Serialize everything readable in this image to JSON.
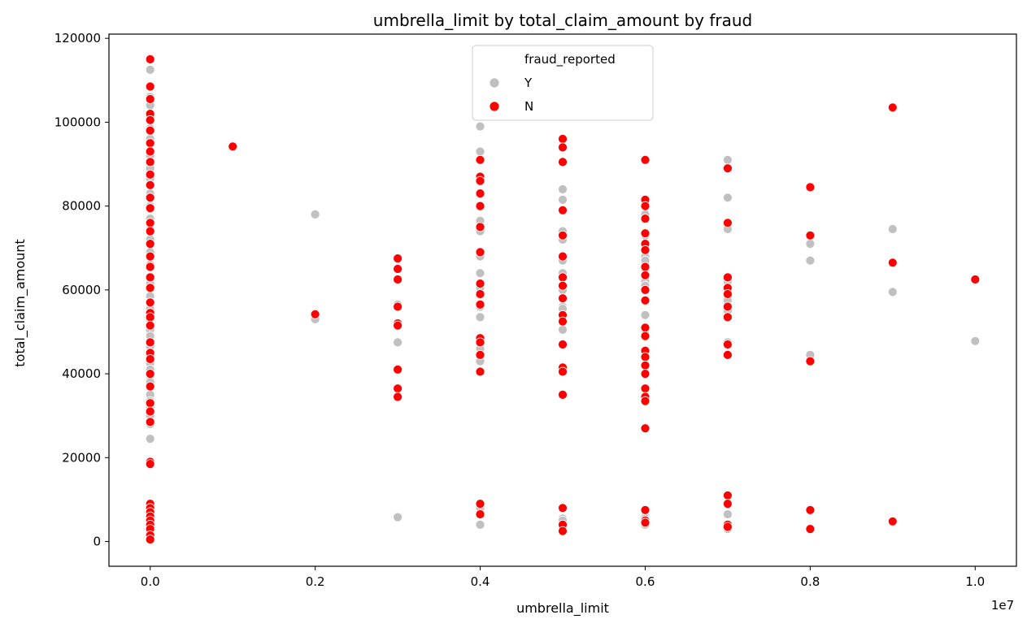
{
  "chart_data": {
    "type": "scatter",
    "title": "umbrella_limit by total_claim_amount by fraud",
    "xlabel": "umbrella_limit",
    "ylabel": "total_claim_amount",
    "x_offset_label": "1e7",
    "xlim": [
      -0.05,
      1.05
    ],
    "ylim": [
      -5900,
      121000
    ],
    "x_ticks": [
      0.0,
      0.2,
      0.4,
      0.6,
      0.8,
      1.0
    ],
    "x_tick_labels": [
      "0.0",
      "0.2",
      "0.4",
      "0.6",
      "0.8",
      "1.0"
    ],
    "y_ticks": [
      0,
      20000,
      40000,
      60000,
      80000,
      100000,
      120000
    ],
    "y_tick_labels": [
      "0",
      "20000",
      "40000",
      "60000",
      "80000",
      "100000",
      "120000"
    ],
    "grid": false,
    "legend": {
      "title": "fraud_reported",
      "placement": "upper-center",
      "entries": [
        {
          "label": "Y",
          "color": "#c0c0c0"
        },
        {
          "label": "N",
          "color": "#ff0000"
        }
      ]
    },
    "series": [
      {
        "name": "Y",
        "color": "#c0c0c0",
        "points": [
          [
            0.0,
            112500
          ],
          [
            0.0,
            106000
          ],
          [
            0.0,
            104000
          ],
          [
            0.0,
            101000
          ],
          [
            0.0,
            98500
          ],
          [
            0.0,
            96000
          ],
          [
            0.0,
            92000
          ],
          [
            0.0,
            89000
          ],
          [
            0.0,
            86500
          ],
          [
            0.0,
            83000
          ],
          [
            0.0,
            80000
          ],
          [
            0.0,
            77000
          ],
          [
            0.0,
            74500
          ],
          [
            0.0,
            72000
          ],
          [
            0.0,
            69000
          ],
          [
            0.0,
            66000
          ],
          [
            0.0,
            63000
          ],
          [
            0.0,
            61500
          ],
          [
            0.0,
            58500
          ],
          [
            0.0,
            55500
          ],
          [
            0.0,
            53000
          ],
          [
            0.0,
            50500
          ],
          [
            0.0,
            49000
          ],
          [
            0.0,
            46500
          ],
          [
            0.0,
            44000
          ],
          [
            0.0,
            42500
          ],
          [
            0.0,
            41000
          ],
          [
            0.0,
            39500
          ],
          [
            0.0,
            38000
          ],
          [
            0.0,
            35000
          ],
          [
            0.0,
            33500
          ],
          [
            0.0,
            32000
          ],
          [
            0.0,
            30000
          ],
          [
            0.0,
            28000
          ],
          [
            0.0,
            24500
          ],
          [
            0.0,
            9000
          ],
          [
            0.0,
            8000
          ],
          [
            0.0,
            7000
          ],
          [
            0.0,
            6000
          ],
          [
            0.0,
            5500
          ],
          [
            0.0,
            4500
          ],
          [
            0.0,
            3000
          ],
          [
            0.0,
            2000
          ],
          [
            0.0,
            1000
          ],
          [
            0.0,
            500
          ],
          [
            0.2,
            78000
          ],
          [
            0.2,
            53000
          ],
          [
            0.3,
            56500
          ],
          [
            0.3,
            52000
          ],
          [
            0.3,
            47500
          ],
          [
            0.3,
            5800
          ],
          [
            0.4,
            99000
          ],
          [
            0.4,
            93000
          ],
          [
            0.4,
            76500
          ],
          [
            0.4,
            74000
          ],
          [
            0.4,
            68000
          ],
          [
            0.4,
            64000
          ],
          [
            0.4,
            60500
          ],
          [
            0.4,
            56000
          ],
          [
            0.4,
            53500
          ],
          [
            0.4,
            46000
          ],
          [
            0.4,
            43000
          ],
          [
            0.4,
            8000
          ],
          [
            0.4,
            4000
          ],
          [
            0.5,
            84000
          ],
          [
            0.5,
            81500
          ],
          [
            0.5,
            74000
          ],
          [
            0.5,
            72000
          ],
          [
            0.5,
            67000
          ],
          [
            0.5,
            64000
          ],
          [
            0.5,
            60000
          ],
          [
            0.5,
            56000
          ],
          [
            0.5,
            55500
          ],
          [
            0.5,
            50500
          ],
          [
            0.5,
            5500
          ],
          [
            0.5,
            5000
          ],
          [
            0.5,
            4000
          ],
          [
            0.5,
            3500
          ],
          [
            0.6,
            78000
          ],
          [
            0.6,
            73000
          ],
          [
            0.6,
            68000
          ],
          [
            0.6,
            67000
          ],
          [
            0.6,
            65000
          ],
          [
            0.6,
            62000
          ],
          [
            0.6,
            61000
          ],
          [
            0.6,
            54000
          ],
          [
            0.6,
            49500
          ],
          [
            0.6,
            7000
          ],
          [
            0.6,
            6500
          ],
          [
            0.6,
            6000
          ],
          [
            0.6,
            5500
          ],
          [
            0.6,
            4500
          ],
          [
            0.6,
            4000
          ],
          [
            0.7,
            91000
          ],
          [
            0.7,
            82000
          ],
          [
            0.7,
            74500
          ],
          [
            0.7,
            62000
          ],
          [
            0.7,
            58000
          ],
          [
            0.7,
            57500
          ],
          [
            0.7,
            55000
          ],
          [
            0.7,
            47500
          ],
          [
            0.7,
            6500
          ],
          [
            0.7,
            4000
          ],
          [
            0.7,
            3000
          ],
          [
            0.8,
            71000
          ],
          [
            0.8,
            67000
          ],
          [
            0.8,
            44500
          ],
          [
            0.9,
            74500
          ],
          [
            0.9,
            59500
          ],
          [
            1.0,
            47800
          ]
        ]
      },
      {
        "name": "N",
        "color": "#ff0000",
        "points": [
          [
            0.0,
            115000
          ],
          [
            0.0,
            108500
          ],
          [
            0.0,
            105500
          ],
          [
            0.0,
            102000
          ],
          [
            0.0,
            100500
          ],
          [
            0.0,
            98000
          ],
          [
            0.0,
            95000
          ],
          [
            0.0,
            93000
          ],
          [
            0.0,
            90500
          ],
          [
            0.0,
            87500
          ],
          [
            0.0,
            85000
          ],
          [
            0.0,
            82000
          ],
          [
            0.0,
            79500
          ],
          [
            0.0,
            76000
          ],
          [
            0.0,
            74000
          ],
          [
            0.0,
            71000
          ],
          [
            0.0,
            68000
          ],
          [
            0.0,
            65500
          ],
          [
            0.0,
            63000
          ],
          [
            0.0,
            60500
          ],
          [
            0.0,
            57000
          ],
          [
            0.0,
            54500
          ],
          [
            0.0,
            53500
          ],
          [
            0.0,
            51500
          ],
          [
            0.0,
            47500
          ],
          [
            0.0,
            45000
          ],
          [
            0.0,
            43500
          ],
          [
            0.0,
            40000
          ],
          [
            0.0,
            37000
          ],
          [
            0.0,
            33000
          ],
          [
            0.0,
            31000
          ],
          [
            0.0,
            28500
          ],
          [
            0.0,
            19000
          ],
          [
            0.0,
            18500
          ],
          [
            0.0,
            9000
          ],
          [
            0.0,
            8000
          ],
          [
            0.0,
            7000
          ],
          [
            0.0,
            6000
          ],
          [
            0.0,
            5000
          ],
          [
            0.0,
            4000
          ],
          [
            0.0,
            3000
          ],
          [
            0.0,
            1500
          ],
          [
            0.0,
            500
          ],
          [
            0.1,
            94200
          ],
          [
            0.2,
            54200
          ],
          [
            0.3,
            67500
          ],
          [
            0.3,
            65000
          ],
          [
            0.3,
            62500
          ],
          [
            0.3,
            56000
          ],
          [
            0.3,
            52000
          ],
          [
            0.3,
            51500
          ],
          [
            0.3,
            41000
          ],
          [
            0.3,
            36500
          ],
          [
            0.3,
            34500
          ],
          [
            0.4,
            91000
          ],
          [
            0.4,
            87000
          ],
          [
            0.4,
            86000
          ],
          [
            0.4,
            83000
          ],
          [
            0.4,
            80000
          ],
          [
            0.4,
            75000
          ],
          [
            0.4,
            69000
          ],
          [
            0.4,
            61500
          ],
          [
            0.4,
            59000
          ],
          [
            0.4,
            56500
          ],
          [
            0.4,
            48500
          ],
          [
            0.4,
            47500
          ],
          [
            0.4,
            44500
          ],
          [
            0.4,
            40500
          ],
          [
            0.4,
            9000
          ],
          [
            0.4,
            6500
          ],
          [
            0.5,
            96000
          ],
          [
            0.5,
            94000
          ],
          [
            0.5,
            90500
          ],
          [
            0.5,
            79000
          ],
          [
            0.5,
            73000
          ],
          [
            0.5,
            68000
          ],
          [
            0.5,
            63000
          ],
          [
            0.5,
            61000
          ],
          [
            0.5,
            58000
          ],
          [
            0.5,
            54000
          ],
          [
            0.5,
            52500
          ],
          [
            0.5,
            47000
          ],
          [
            0.5,
            41500
          ],
          [
            0.5,
            40500
          ],
          [
            0.5,
            35000
          ],
          [
            0.5,
            8000
          ],
          [
            0.5,
            4000
          ],
          [
            0.5,
            2500
          ],
          [
            0.6,
            91000
          ],
          [
            0.6,
            81500
          ],
          [
            0.6,
            80000
          ],
          [
            0.6,
            77000
          ],
          [
            0.6,
            73500
          ],
          [
            0.6,
            71000
          ],
          [
            0.6,
            69500
          ],
          [
            0.6,
            65500
          ],
          [
            0.6,
            63500
          ],
          [
            0.6,
            60000
          ],
          [
            0.6,
            57500
          ],
          [
            0.6,
            51000
          ],
          [
            0.6,
            49000
          ],
          [
            0.6,
            45500
          ],
          [
            0.6,
            44000
          ],
          [
            0.6,
            42000
          ],
          [
            0.6,
            40000
          ],
          [
            0.6,
            36500
          ],
          [
            0.6,
            34500
          ],
          [
            0.6,
            33500
          ],
          [
            0.6,
            27000
          ],
          [
            0.6,
            7500
          ],
          [
            0.6,
            5000
          ],
          [
            0.6,
            4500
          ],
          [
            0.7,
            89000
          ],
          [
            0.7,
            76000
          ],
          [
            0.7,
            63000
          ],
          [
            0.7,
            60500
          ],
          [
            0.7,
            59000
          ],
          [
            0.7,
            56000
          ],
          [
            0.7,
            53500
          ],
          [
            0.7,
            47000
          ],
          [
            0.7,
            44500
          ],
          [
            0.7,
            11000
          ],
          [
            0.7,
            9000
          ],
          [
            0.7,
            4000
          ],
          [
            0.7,
            3500
          ],
          [
            0.8,
            84500
          ],
          [
            0.8,
            73000
          ],
          [
            0.8,
            43000
          ],
          [
            0.8,
            7500
          ],
          [
            0.8,
            3000
          ],
          [
            0.9,
            103500
          ],
          [
            0.9,
            66500
          ],
          [
            0.9,
            4800
          ],
          [
            1.0,
            62500
          ]
        ]
      }
    ]
  }
}
